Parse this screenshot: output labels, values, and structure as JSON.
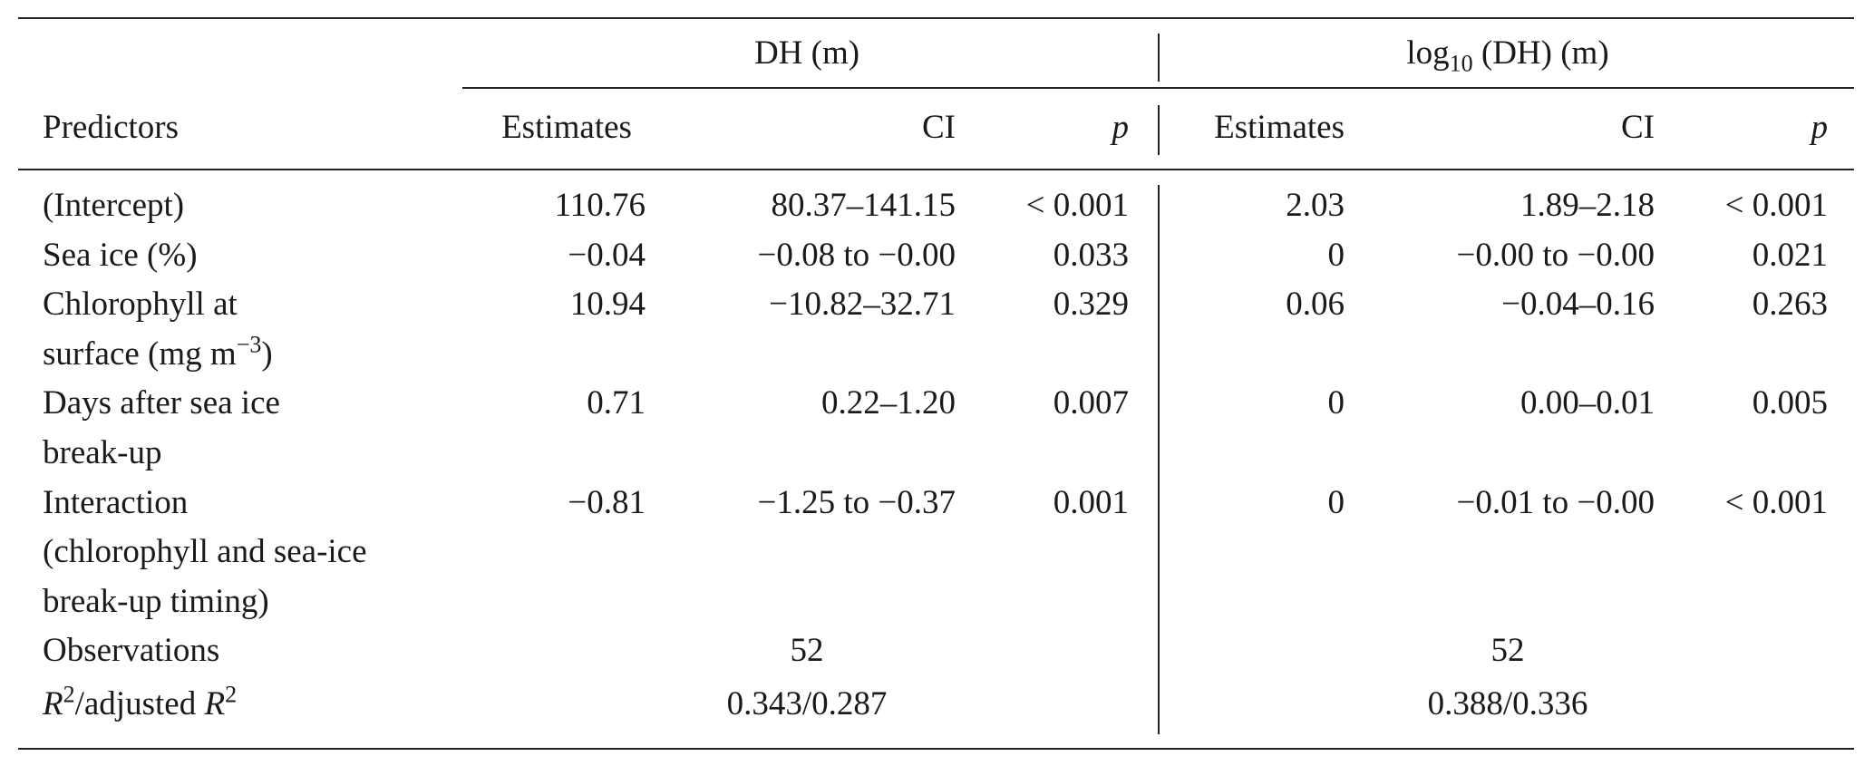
{
  "table": {
    "groups": [
      [
        "DH (m)"
      ],
      [
        "log",
        {
          "sub": "10"
        },
        " (DH) (m)"
      ]
    ],
    "columns": [
      [
        "Predictors"
      ],
      [
        "Estimates"
      ],
      [
        "CI"
      ],
      [
        {
          "i": "p"
        }
      ],
      [
        "Estimates"
      ],
      [
        "CI"
      ],
      [
        {
          "i": "p"
        }
      ]
    ],
    "rows": [
      {
        "predictor": [
          [
            "(Intercept)"
          ]
        ],
        "values": [
          "110.76",
          "80.37–141.15",
          "< 0.001",
          "2.03",
          "1.89–2.18",
          "< 0.001"
        ]
      },
      {
        "predictor": [
          [
            "Sea ice (%)"
          ]
        ],
        "values": [
          "−0.04",
          "−0.08 to −0.00",
          "0.033",
          "0",
          "−0.00 to −0.00",
          "0.021"
        ]
      },
      {
        "predictor": [
          [
            "Chlorophyll at"
          ],
          [
            "surface (mg m",
            {
              "sup": "−3"
            },
            ")"
          ]
        ],
        "values": [
          "10.94",
          "−10.82–32.71",
          "0.329",
          "0.06",
          "−0.04–0.16",
          "0.263"
        ]
      },
      {
        "predictor": [
          [
            "Days after sea ice"
          ],
          [
            "break-up"
          ]
        ],
        "values": [
          "0.71",
          "0.22–1.20",
          "0.007",
          "0",
          "0.00–0.01",
          "0.005"
        ]
      },
      {
        "predictor": [
          [
            "Interaction"
          ],
          [
            "(chlorophyll and sea-ice"
          ],
          [
            "break-up timing)"
          ]
        ],
        "values": [
          "−0.81",
          "−1.25 to −0.37",
          "0.001",
          "0",
          "−0.01 to −0.00",
          "< 0.001"
        ]
      }
    ],
    "footer": [
      {
        "label": [
          "Observations"
        ],
        "values": [
          "52",
          "52"
        ]
      },
      {
        "label": [
          {
            "i": "R"
          },
          {
            "sup": "2"
          },
          "/adjusted ",
          {
            "i": "R"
          },
          {
            "sup": "2"
          }
        ],
        "values": [
          "0.343/0.287",
          "0.388/0.336"
        ]
      }
    ]
  }
}
